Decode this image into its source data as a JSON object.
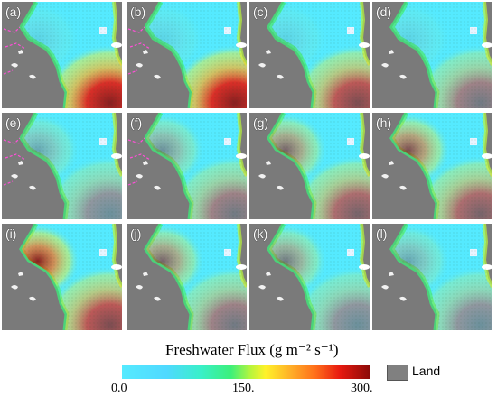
{
  "panels": [
    "(a)",
    "(b)",
    "(c)",
    "(d)",
    "(e)",
    "(f)",
    "(g)",
    "(h)",
    "(i)",
    "(j)",
    "(k)",
    "(l)"
  ],
  "colorbar": {
    "title": "Freshwater Flux (g m⁻² s⁻¹)",
    "ticks": [
      "0.0",
      "150.",
      "300."
    ],
    "range": [
      0,
      300
    ]
  },
  "legend": {
    "land_label": "Land"
  },
  "colors": {
    "land": "#808080",
    "low": "#55eaff",
    "mid": "#fff22a",
    "high": "#8c0a08",
    "river_lines": "#ff4fd8"
  }
}
